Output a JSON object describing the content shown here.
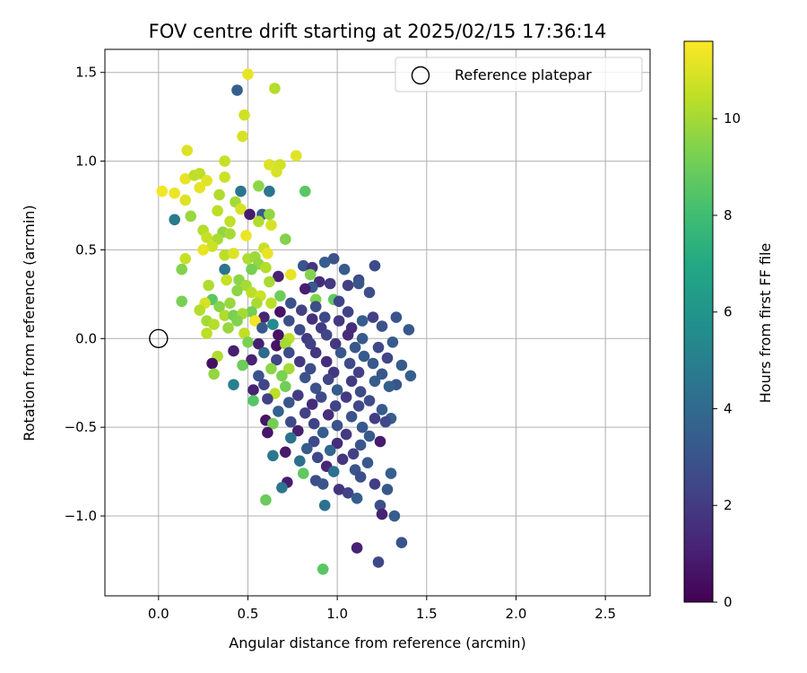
{
  "chart_data": {
    "type": "scatter",
    "title": "FOV centre drift starting at 2025/02/15 17:36:14",
    "xlabel": "Angular distance from reference (arcmin)",
    "ylabel": "Rotation from reference (arcmin)",
    "xlim": [
      -0.3,
      2.75
    ],
    "ylim": [
      -1.45,
      1.63
    ],
    "xticks": [
      0.0,
      0.5,
      1.0,
      1.5,
      2.0,
      2.5
    ],
    "xtick_labels": [
      "0.0",
      "0.5",
      "1.0",
      "1.5",
      "2.0",
      "2.5"
    ],
    "yticks": [
      -1.0,
      -0.5,
      0.0,
      0.5,
      1.0,
      1.5
    ],
    "ytick_labels": [
      "−1.0",
      "−0.5",
      "0.0",
      "0.5",
      "1.0",
      "1.5"
    ],
    "grid": true,
    "legend": {
      "placement": "top-right",
      "entries": [
        "Reference platepar"
      ]
    },
    "reference_point": {
      "x": 0.0,
      "y": 0.0,
      "marker": "open-circle"
    },
    "colorbar": {
      "label": "Hours from first FF file",
      "colormap": "viridis",
      "range": [
        0,
        11.6
      ],
      "ticks": [
        0,
        2,
        4,
        6,
        8,
        10
      ],
      "tick_labels": [
        "0",
        "2",
        "4",
        "6",
        "8",
        "10"
      ]
    },
    "points": [
      [
        0.5,
        1.49,
        11.2
      ],
      [
        0.65,
        1.41,
        10.3
      ],
      [
        0.44,
        1.4,
        3.5
      ],
      [
        0.48,
        1.26,
        10.8
      ],
      [
        0.47,
        1.14,
        10.9
      ],
      [
        0.16,
        1.06,
        11.0
      ],
      [
        0.77,
        1.03,
        11.1
      ],
      [
        0.37,
        1.0,
        10.6
      ],
      [
        0.62,
        0.98,
        11.0
      ],
      [
        0.68,
        0.98,
        10.8
      ],
      [
        0.15,
        0.9,
        11.2
      ],
      [
        0.23,
        0.93,
        10.4
      ],
      [
        0.37,
        0.91,
        10.7
      ],
      [
        0.2,
        0.92,
        10.5
      ],
      [
        0.27,
        0.89,
        11.1
      ],
      [
        0.66,
        0.94,
        10.9
      ],
      [
        0.56,
        0.86,
        9.6
      ],
      [
        0.23,
        0.85,
        11.2
      ],
      [
        0.02,
        0.83,
        11.4
      ],
      [
        0.09,
        0.82,
        11.3
      ],
      [
        0.46,
        0.83,
        4.5
      ],
      [
        0.62,
        0.83,
        4.5
      ],
      [
        0.82,
        0.83,
        8.6
      ],
      [
        0.34,
        0.81,
        10.2
      ],
      [
        0.15,
        0.78,
        11.0
      ],
      [
        0.43,
        0.77,
        10.0
      ],
      [
        0.33,
        0.72,
        10.4
      ],
      [
        0.46,
        0.73,
        10.9
      ],
      [
        0.09,
        0.67,
        4.8
      ],
      [
        0.18,
        0.69,
        9.8
      ],
      [
        0.51,
        0.7,
        0.9
      ],
      [
        0.58,
        0.7,
        3.4
      ],
      [
        0.62,
        0.7,
        9.7
      ],
      [
        0.4,
        0.66,
        10.5
      ],
      [
        0.56,
        0.66,
        10.2
      ],
      [
        0.63,
        0.64,
        10.9
      ],
      [
        0.25,
        0.61,
        10.3
      ],
      [
        0.36,
        0.6,
        9.7
      ],
      [
        0.4,
        0.59,
        10.0
      ],
      [
        0.27,
        0.57,
        10.6
      ],
      [
        0.33,
        0.56,
        10.1
      ],
      [
        0.49,
        0.58,
        11.3
      ],
      [
        0.71,
        0.56,
        9.4
      ],
      [
        0.3,
        0.52,
        10.7
      ],
      [
        0.25,
        0.5,
        11.2
      ],
      [
        0.59,
        0.51,
        10.6
      ],
      [
        0.37,
        0.47,
        10.4
      ],
      [
        0.42,
        0.48,
        11.0
      ],
      [
        0.5,
        0.45,
        10.2
      ],
      [
        0.54,
        0.46,
        9.9
      ],
      [
        0.15,
        0.45,
        10.6
      ],
      [
        0.61,
        0.48,
        11.2
      ],
      [
        0.56,
        0.42,
        9.7
      ],
      [
        0.6,
        0.4,
        10.3
      ],
      [
        0.81,
        0.41,
        3.0
      ],
      [
        0.86,
        0.4,
        1.8
      ],
      [
        0.98,
        0.45,
        2.9
      ],
      [
        0.93,
        0.43,
        3.4
      ],
      [
        1.04,
        0.39,
        3.3
      ],
      [
        1.21,
        0.41,
        2.6
      ],
      [
        0.13,
        0.39,
        9.4
      ],
      [
        0.37,
        0.39,
        4.5
      ],
      [
        0.52,
        0.39,
        9.2
      ],
      [
        0.85,
        0.36,
        9.4
      ],
      [
        0.67,
        0.35,
        1.1
      ],
      [
        0.74,
        0.36,
        11.2
      ],
      [
        0.38,
        0.33,
        10.6
      ],
      [
        0.45,
        0.33,
        9.6
      ],
      [
        0.62,
        0.32,
        10.1
      ],
      [
        1.12,
        0.33,
        2.6
      ],
      [
        0.9,
        0.32,
        1.5
      ],
      [
        0.96,
        0.31,
        2.0
      ],
      [
        0.28,
        0.3,
        10.2
      ],
      [
        0.49,
        0.3,
        10.0
      ],
      [
        0.86,
        0.29,
        3.3
      ],
      [
        1.06,
        0.3,
        2.2
      ],
      [
        1.12,
        0.31,
        3.1
      ],
      [
        0.44,
        0.27,
        9.6
      ],
      [
        0.82,
        0.28,
        1.0
      ],
      [
        1.18,
        0.26,
        2.8
      ],
      [
        0.52,
        0.26,
        10.4
      ],
      [
        0.57,
        0.24,
        10.7
      ],
      [
        0.68,
        0.24,
        9.0
      ],
      [
        0.3,
        0.22,
        8.6
      ],
      [
        0.55,
        0.2,
        10.1
      ],
      [
        0.13,
        0.21,
        9.2
      ],
      [
        0.26,
        0.2,
        10.9
      ],
      [
        0.4,
        0.2,
        9.8
      ],
      [
        0.63,
        0.2,
        10.4
      ],
      [
        0.74,
        0.2,
        2.9
      ],
      [
        0.88,
        0.22,
        9.4
      ],
      [
        0.98,
        0.22,
        8.7
      ],
      [
        1.01,
        0.21,
        2.4
      ],
      [
        0.23,
        0.16,
        10.3
      ],
      [
        0.34,
        0.18,
        9.5
      ],
      [
        0.52,
        0.15,
        9.1
      ],
      [
        0.68,
        0.15,
        0.6
      ],
      [
        0.8,
        0.16,
        2.2
      ],
      [
        0.88,
        0.18,
        2.8
      ],
      [
        1.06,
        0.15,
        2.3
      ],
      [
        0.37,
        0.13,
        10.2
      ],
      [
        0.42,
        0.13,
        9.2
      ],
      [
        0.47,
        0.14,
        10.0
      ],
      [
        0.59,
        0.12,
        1.2
      ],
      [
        0.93,
        0.12,
        2.5
      ],
      [
        1.2,
        0.12,
        2.2
      ],
      [
        0.27,
        0.1,
        10.0
      ],
      [
        0.44,
        0.1,
        9.4
      ],
      [
        0.54,
        0.1,
        11.4
      ],
      [
        0.73,
        0.1,
        2.8
      ],
      [
        0.86,
        0.11,
        1.6
      ],
      [
        1.01,
        0.1,
        1.9
      ],
      [
        1.14,
        0.1,
        3.4
      ],
      [
        1.33,
        0.12,
        3.0
      ],
      [
        0.31,
        0.08,
        10.3
      ],
      [
        0.39,
        0.06,
        9.8
      ],
      [
        0.58,
        0.06,
        3.2
      ],
      [
        0.64,
        0.08,
        5.5
      ],
      [
        0.79,
        0.05,
        2.6
      ],
      [
        0.91,
        0.06,
        2.0
      ],
      [
        1.08,
        0.06,
        1.6
      ],
      [
        1.25,
        0.07,
        2.9
      ],
      [
        1.4,
        0.05,
        3.2
      ],
      [
        0.27,
        0.03,
        10.4
      ],
      [
        0.48,
        0.03,
        10.5
      ],
      [
        0.67,
        0.02,
        0.6
      ],
      [
        0.73,
        0.0,
        10.4
      ],
      [
        0.83,
        0.0,
        2.0
      ],
      [
        0.94,
        0.02,
        2.4
      ],
      [
        1.06,
        0.02,
        1.4
      ],
      [
        1.14,
        0.0,
        3.3
      ],
      [
        1.31,
        -0.02,
        3.3
      ],
      [
        0.5,
        -0.02,
        9.3
      ],
      [
        0.56,
        -0.03,
        1.0
      ],
      [
        0.66,
        -0.04,
        0.6
      ],
      [
        0.71,
        -0.03,
        10.0
      ],
      [
        0.85,
        -0.03,
        2.2
      ],
      [
        0.99,
        -0.03,
        1.8
      ],
      [
        1.1,
        -0.05,
        3.2
      ],
      [
        1.23,
        -0.05,
        2.5
      ],
      [
        0.42,
        -0.07,
        1.0
      ],
      [
        0.59,
        -0.08,
        4.0
      ],
      [
        0.73,
        -0.08,
        2.7
      ],
      [
        0.88,
        -0.08,
        1.8
      ],
      [
        1.02,
        -0.08,
        3.2
      ],
      [
        1.15,
        -0.1,
        3.3
      ],
      [
        1.28,
        -0.11,
        2.4
      ],
      [
        0.33,
        -0.1,
        10.2
      ],
      [
        0.52,
        -0.12,
        1.1
      ],
      [
        0.66,
        -0.12,
        2.4
      ],
      [
        0.79,
        -0.13,
        1.9
      ],
      [
        0.94,
        -0.13,
        1.5
      ],
      [
        1.07,
        -0.14,
        2.6
      ],
      [
        1.2,
        -0.14,
        3.2
      ],
      [
        1.36,
        -0.15,
        3.3
      ],
      [
        0.3,
        -0.14,
        0.5
      ],
      [
        0.47,
        -0.15,
        9.0
      ],
      [
        0.63,
        -0.17,
        9.6
      ],
      [
        0.73,
        -0.17,
        10.0
      ],
      [
        0.85,
        -0.17,
        2.7
      ],
      [
        0.98,
        -0.19,
        1.9
      ],
      [
        1.12,
        -0.19,
        2.2
      ],
      [
        1.25,
        -0.2,
        3.1
      ],
      [
        1.41,
        -0.21,
        3.5
      ],
      [
        0.31,
        -0.2,
        9.7
      ],
      [
        0.56,
        -0.21,
        2.9
      ],
      [
        0.69,
        -0.21,
        9.3
      ],
      [
        0.82,
        -0.22,
        3.0
      ],
      [
        0.95,
        -0.23,
        2.4
      ],
      [
        1.08,
        -0.24,
        2.0
      ],
      [
        1.21,
        -0.24,
        3.4
      ],
      [
        1.33,
        -0.26,
        3.1
      ],
      [
        0.42,
        -0.26,
        5.0
      ],
      [
        0.59,
        -0.26,
        2.4
      ],
      [
        0.71,
        -0.27,
        9.1
      ],
      [
        0.88,
        -0.28,
        2.9
      ],
      [
        1.0,
        -0.29,
        3.3
      ],
      [
        1.13,
        -0.3,
        2.6
      ],
      [
        1.29,
        -0.27,
        3.5
      ],
      [
        0.53,
        -0.29,
        1.1
      ],
      [
        0.65,
        -0.31,
        10.4
      ],
      [
        0.78,
        -0.32,
        2.0
      ],
      [
        0.91,
        -0.33,
        2.6
      ],
      [
        1.05,
        -0.33,
        1.9
      ],
      [
        1.18,
        -0.35,
        2.7
      ],
      [
        0.61,
        -0.34,
        2.2
      ],
      [
        0.73,
        -0.36,
        3.2
      ],
      [
        0.86,
        -0.37,
        1.4
      ],
      [
        0.99,
        -0.38,
        2.3
      ],
      [
        1.12,
        -0.38,
        2.5
      ],
      [
        1.25,
        -0.4,
        3.3
      ],
      [
        0.53,
        -0.35,
        8.5
      ],
      [
        0.67,
        -0.41,
        3.6
      ],
      [
        0.82,
        -0.42,
        2.2
      ],
      [
        0.95,
        -0.43,
        1.6
      ],
      [
        1.08,
        -0.44,
        3.0
      ],
      [
        1.21,
        -0.45,
        2.1
      ],
      [
        1.3,
        -0.45,
        3.4
      ],
      [
        0.6,
        -0.46,
        0.7
      ],
      [
        0.74,
        -0.47,
        2.6
      ],
      [
        0.87,
        -0.48,
        2.3
      ],
      [
        1.0,
        -0.49,
        2.9
      ],
      [
        1.14,
        -0.5,
        3.2
      ],
      [
        1.27,
        -0.47,
        2.5
      ],
      [
        0.64,
        -0.48,
        9.1
      ],
      [
        0.78,
        -0.52,
        1.0
      ],
      [
        0.92,
        -0.53,
        3.4
      ],
      [
        1.05,
        -0.54,
        2.0
      ],
      [
        1.18,
        -0.55,
        3.3
      ],
      [
        0.61,
        -0.53,
        0.7
      ],
      [
        0.74,
        -0.56,
        4.3
      ],
      [
        0.87,
        -0.58,
        2.6
      ],
      [
        1.0,
        -0.59,
        1.5
      ],
      [
        1.13,
        -0.6,
        3.1
      ],
      [
        1.24,
        -0.58,
        0.9
      ],
      [
        0.83,
        -0.62,
        3.3
      ],
      [
        0.96,
        -0.63,
        3.8
      ],
      [
        1.09,
        -0.65,
        2.2
      ],
      [
        0.71,
        -0.64,
        0.8
      ],
      [
        0.64,
        -0.66,
        4.6
      ],
      [
        0.89,
        -0.67,
        2.5
      ],
      [
        1.03,
        -0.68,
        1.8
      ],
      [
        1.17,
        -0.7,
        3.2
      ],
      [
        0.79,
        -0.69,
        4.2
      ],
      [
        0.94,
        -0.72,
        1.2
      ],
      [
        1.1,
        -0.74,
        3.0
      ],
      [
        0.72,
        -0.81,
        0.9
      ],
      [
        0.69,
        -0.84,
        4.5
      ],
      [
        0.81,
        -0.76,
        8.7
      ],
      [
        0.98,
        -0.75,
        4.3
      ],
      [
        1.13,
        -0.78,
        2.8
      ],
      [
        1.3,
        -0.76,
        3.5
      ],
      [
        1.21,
        -0.82,
        2.1
      ],
      [
        1.28,
        -0.85,
        3.2
      ],
      [
        0.88,
        -0.8,
        2.7
      ],
      [
        0.92,
        -0.82,
        3.1
      ],
      [
        1.01,
        -0.85,
        1.7
      ],
      [
        1.06,
        -0.87,
        2.3
      ],
      [
        0.6,
        -0.91,
        8.9
      ],
      [
        1.11,
        -0.9,
        3.4
      ],
      [
        0.93,
        -0.94,
        4.3
      ],
      [
        1.24,
        -0.94,
        2.8
      ],
      [
        1.25,
        -0.99,
        1.1
      ],
      [
        1.32,
        -1.0,
        3.4
      ],
      [
        1.11,
        -1.18,
        1.1
      ],
      [
        1.36,
        -1.15,
        3.0
      ],
      [
        0.92,
        -1.3,
        8.6
      ],
      [
        1.23,
        -1.26,
        2.5
      ]
    ]
  }
}
